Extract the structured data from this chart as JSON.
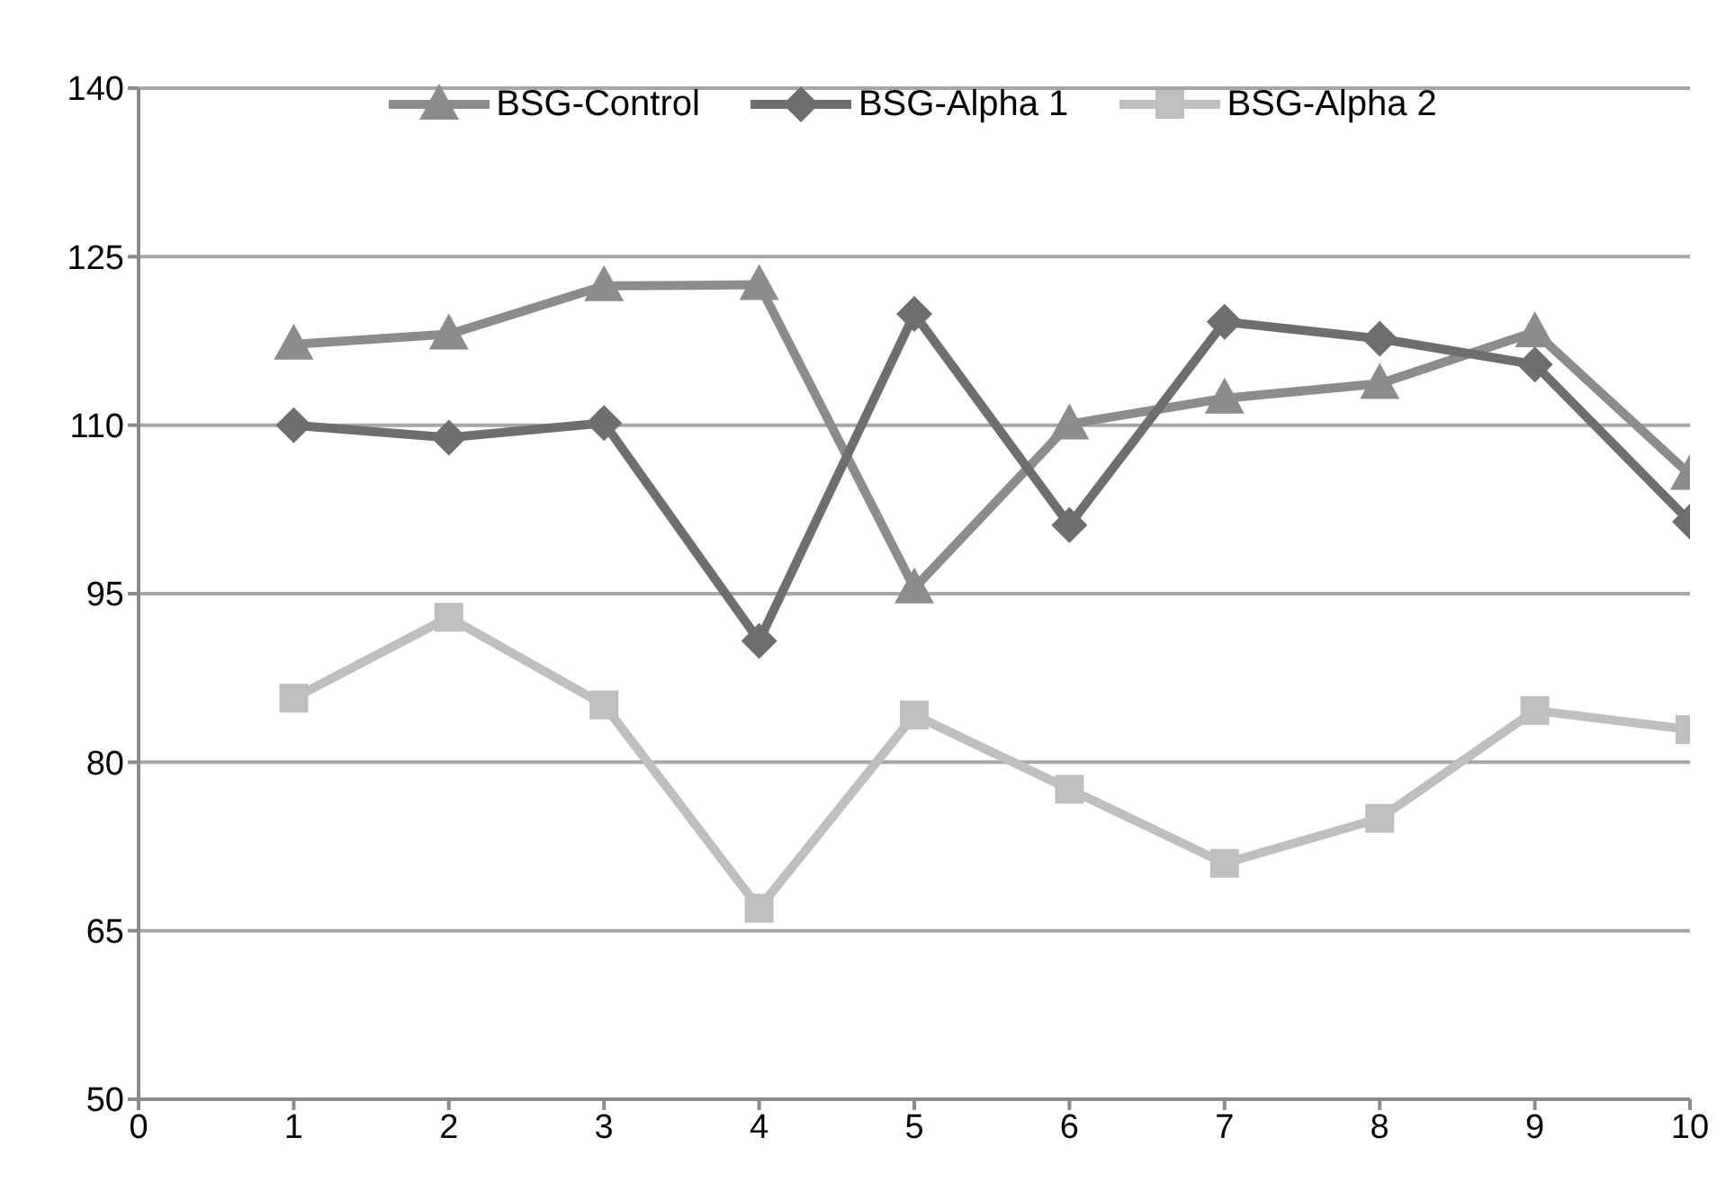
{
  "chart_data": {
    "type": "line",
    "x": [
      1,
      2,
      3,
      4,
      5,
      6,
      7,
      8,
      9,
      10
    ],
    "series": [
      {
        "name": "BSG-Control",
        "color": "#8c8c8c",
        "marker": "triangle",
        "values": [
          117.2,
          118.1,
          122.4,
          122.5,
          95.5,
          110.1,
          112.4,
          113.7,
          118.3,
          105.6
        ]
      },
      {
        "name": "BSG-Alpha 1",
        "color": "#6e6e6e",
        "marker": "diamond",
        "values": [
          110,
          108.9,
          110.2,
          90.8,
          119.9,
          101.1,
          119.2,
          117.7,
          115.4,
          101.4
        ]
      },
      {
        "name": "BSG-Alpha 2",
        "color": "#bfbfbf",
        "marker": "square",
        "values": [
          85.7,
          92.9,
          85.1,
          67.0,
          84.2,
          77.6,
          71.0,
          75.0,
          84.6,
          82.9
        ]
      }
    ],
    "xlim": [
      0,
      10
    ],
    "xticks": [
      0,
      1,
      2,
      3,
      4,
      5,
      6,
      7,
      8,
      9,
      10
    ],
    "ylim": [
      50,
      140
    ],
    "yticks": [
      50,
      65,
      80,
      95,
      110,
      125,
      140
    ],
    "grid": "y",
    "legend": "top",
    "line_style": "solid"
  }
}
